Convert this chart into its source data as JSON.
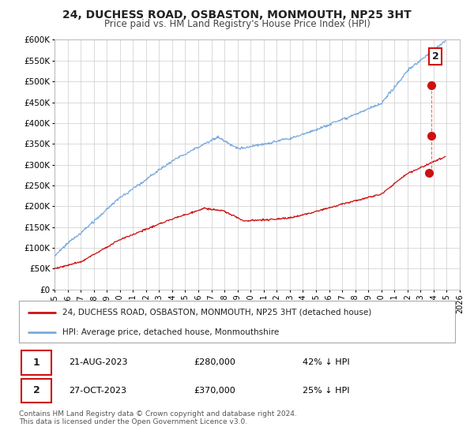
{
  "title": "24, DUCHESS ROAD, OSBASTON, MONMOUTH, NP25 3HT",
  "subtitle": "Price paid vs. HM Land Registry's House Price Index (HPI)",
  "ylim": [
    0,
    600000
  ],
  "xlim": [
    1995.0,
    2026.0
  ],
  "hpi_color": "#7aaadd",
  "price_color": "#cc1111",
  "sale1_x": 2023.63,
  "sale1_y": 280000,
  "sale2_x": 2023.83,
  "sale2_y": 370000,
  "sale2_hpi_y": 490000,
  "sale1_date": "21-AUG-2023",
  "sale1_price": 280000,
  "sale1_hpi_pct": "42% ↓ HPI",
  "sale2_date": "27-OCT-2023",
  "sale2_price": 370000,
  "sale2_hpi_pct": "25% ↓ HPI",
  "legend_line1": "24, DUCHESS ROAD, OSBASTON, MONMOUTH, NP25 3HT (detached house)",
  "legend_line2": "HPI: Average price, detached house, Monmouthshire",
  "footer": "Contains HM Land Registry data © Crown copyright and database right 2024.\nThis data is licensed under the Open Government Licence v3.0.",
  "background_color": "#ffffff",
  "grid_color": "#cccccc",
  "dashed_line_color": "#ff6666"
}
